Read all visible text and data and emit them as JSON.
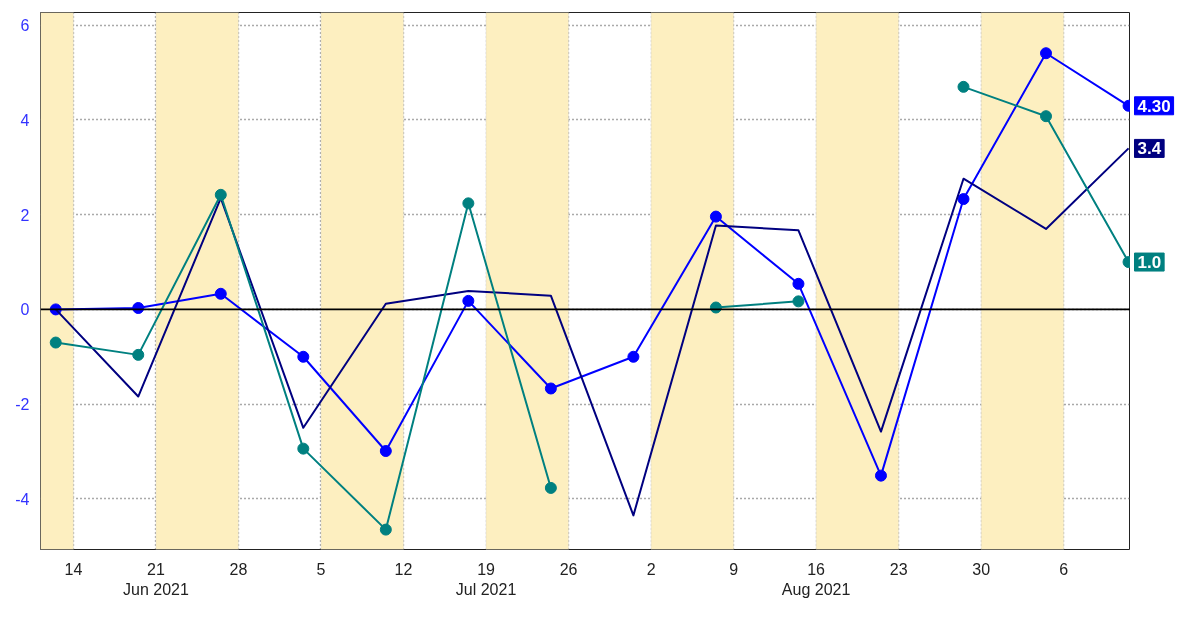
{
  "chart_data": {
    "type": "line",
    "x": [
      "2021-06-12T12:00",
      "2021-06-19T12:00",
      "2021-06-26T12:00",
      "2021-07-03T12:00",
      "2021-07-10T12:00",
      "2021-07-17T12:00",
      "2021-07-24T12:00",
      "2021-07-31T12:00",
      "2021-08-07T12:00",
      "2021-08-14T12:00",
      "2021-08-21T12:00",
      "2021-08-28T12:00",
      "2021-09-04T12:00",
      "2021-09-11T12:00"
    ],
    "series": [
      {
        "color": "#0000ff",
        "marker": "circle",
        "values": [
          0.0,
          0.03,
          0.33,
          -1.0,
          -2.99,
          0.18,
          -1.67,
          -1.0,
          1.96,
          0.54,
          -3.51,
          2.33,
          5.41,
          4.3
        ],
        "value_labels": [
          null,
          null,
          null,
          null,
          null,
          null,
          null,
          null,
          null,
          null,
          null,
          null,
          null,
          "4.30"
        ]
      },
      {
        "color": "#000080",
        "marker": "none",
        "values": [
          0.0,
          -1.84,
          2.35,
          -2.5,
          0.12,
          0.39,
          0.29,
          -4.35,
          1.77,
          1.67,
          -2.58,
          2.76,
          1.7,
          3.4
        ],
        "value_labels": [
          null,
          null,
          null,
          null,
          null,
          null,
          null,
          null,
          null,
          null,
          null,
          null,
          null,
          "3.4"
        ]
      },
      {
        "color": "#008080",
        "marker": "circle",
        "values": [
          -0.7,
          -0.96,
          2.42,
          -2.94,
          -4.65,
          2.24,
          -3.77,
          null,
          0.04,
          0.17,
          null,
          4.7,
          4.08,
          1.0
        ],
        "value_labels": [
          null,
          null,
          null,
          null,
          null,
          null,
          null,
          null,
          null,
          null,
          null,
          null,
          null,
          "1.0"
        ]
      }
    ],
    "xlim": [
      "2021-06-11T05:00",
      "2021-09-11T16:00"
    ],
    "xticks": [
      {
        "value": "2021-06-14",
        "label": "14"
      },
      {
        "value": "2021-06-21",
        "label": "21\nJun 2021"
      },
      {
        "value": "2021-06-28",
        "label": "28"
      },
      {
        "value": "2021-07-05",
        "label": "5"
      },
      {
        "value": "2021-07-12",
        "label": "12"
      },
      {
        "value": "2021-07-19",
        "label": "19\nJul 2021"
      },
      {
        "value": "2021-07-26",
        "label": "26"
      },
      {
        "value": "2021-08-02",
        "label": "2"
      },
      {
        "value": "2021-08-09",
        "label": "9"
      },
      {
        "value": "2021-08-16",
        "label": "16\nAug 2021"
      },
      {
        "value": "2021-08-23",
        "label": "23"
      },
      {
        "value": "2021-08-30",
        "label": "30"
      },
      {
        "value": "2021-09-06",
        "label": "6"
      }
    ],
    "ylim": [
      -5.07,
      6.27
    ],
    "yticks": [
      -4,
      -2,
      0,
      2,
      4,
      6
    ],
    "grid": true,
    "line_style": "solid",
    "ref_lines": [
      {
        "axis": "y",
        "value": 0,
        "color": "#000000"
      }
    ],
    "bands": [
      {
        "axis": "x",
        "from": "2021-06-11T05:00",
        "to": "2021-06-14",
        "color": "#fdefc0"
      },
      {
        "axis": "x",
        "from": "2021-06-21",
        "to": "2021-06-28",
        "color": "#fdefc0"
      },
      {
        "axis": "x",
        "from": "2021-07-05",
        "to": "2021-07-12",
        "color": "#fdefc0"
      },
      {
        "axis": "x",
        "from": "2021-07-19",
        "to": "2021-07-26",
        "color": "#fdefc0"
      },
      {
        "axis": "x",
        "from": "2021-08-02",
        "to": "2021-08-09",
        "color": "#fdefc0"
      },
      {
        "axis": "x",
        "from": "2021-08-16",
        "to": "2021-08-23",
        "color": "#fdefc0"
      },
      {
        "axis": "x",
        "from": "2021-08-30",
        "to": "2021-09-06",
        "color": "#fdefc0"
      }
    ]
  }
}
